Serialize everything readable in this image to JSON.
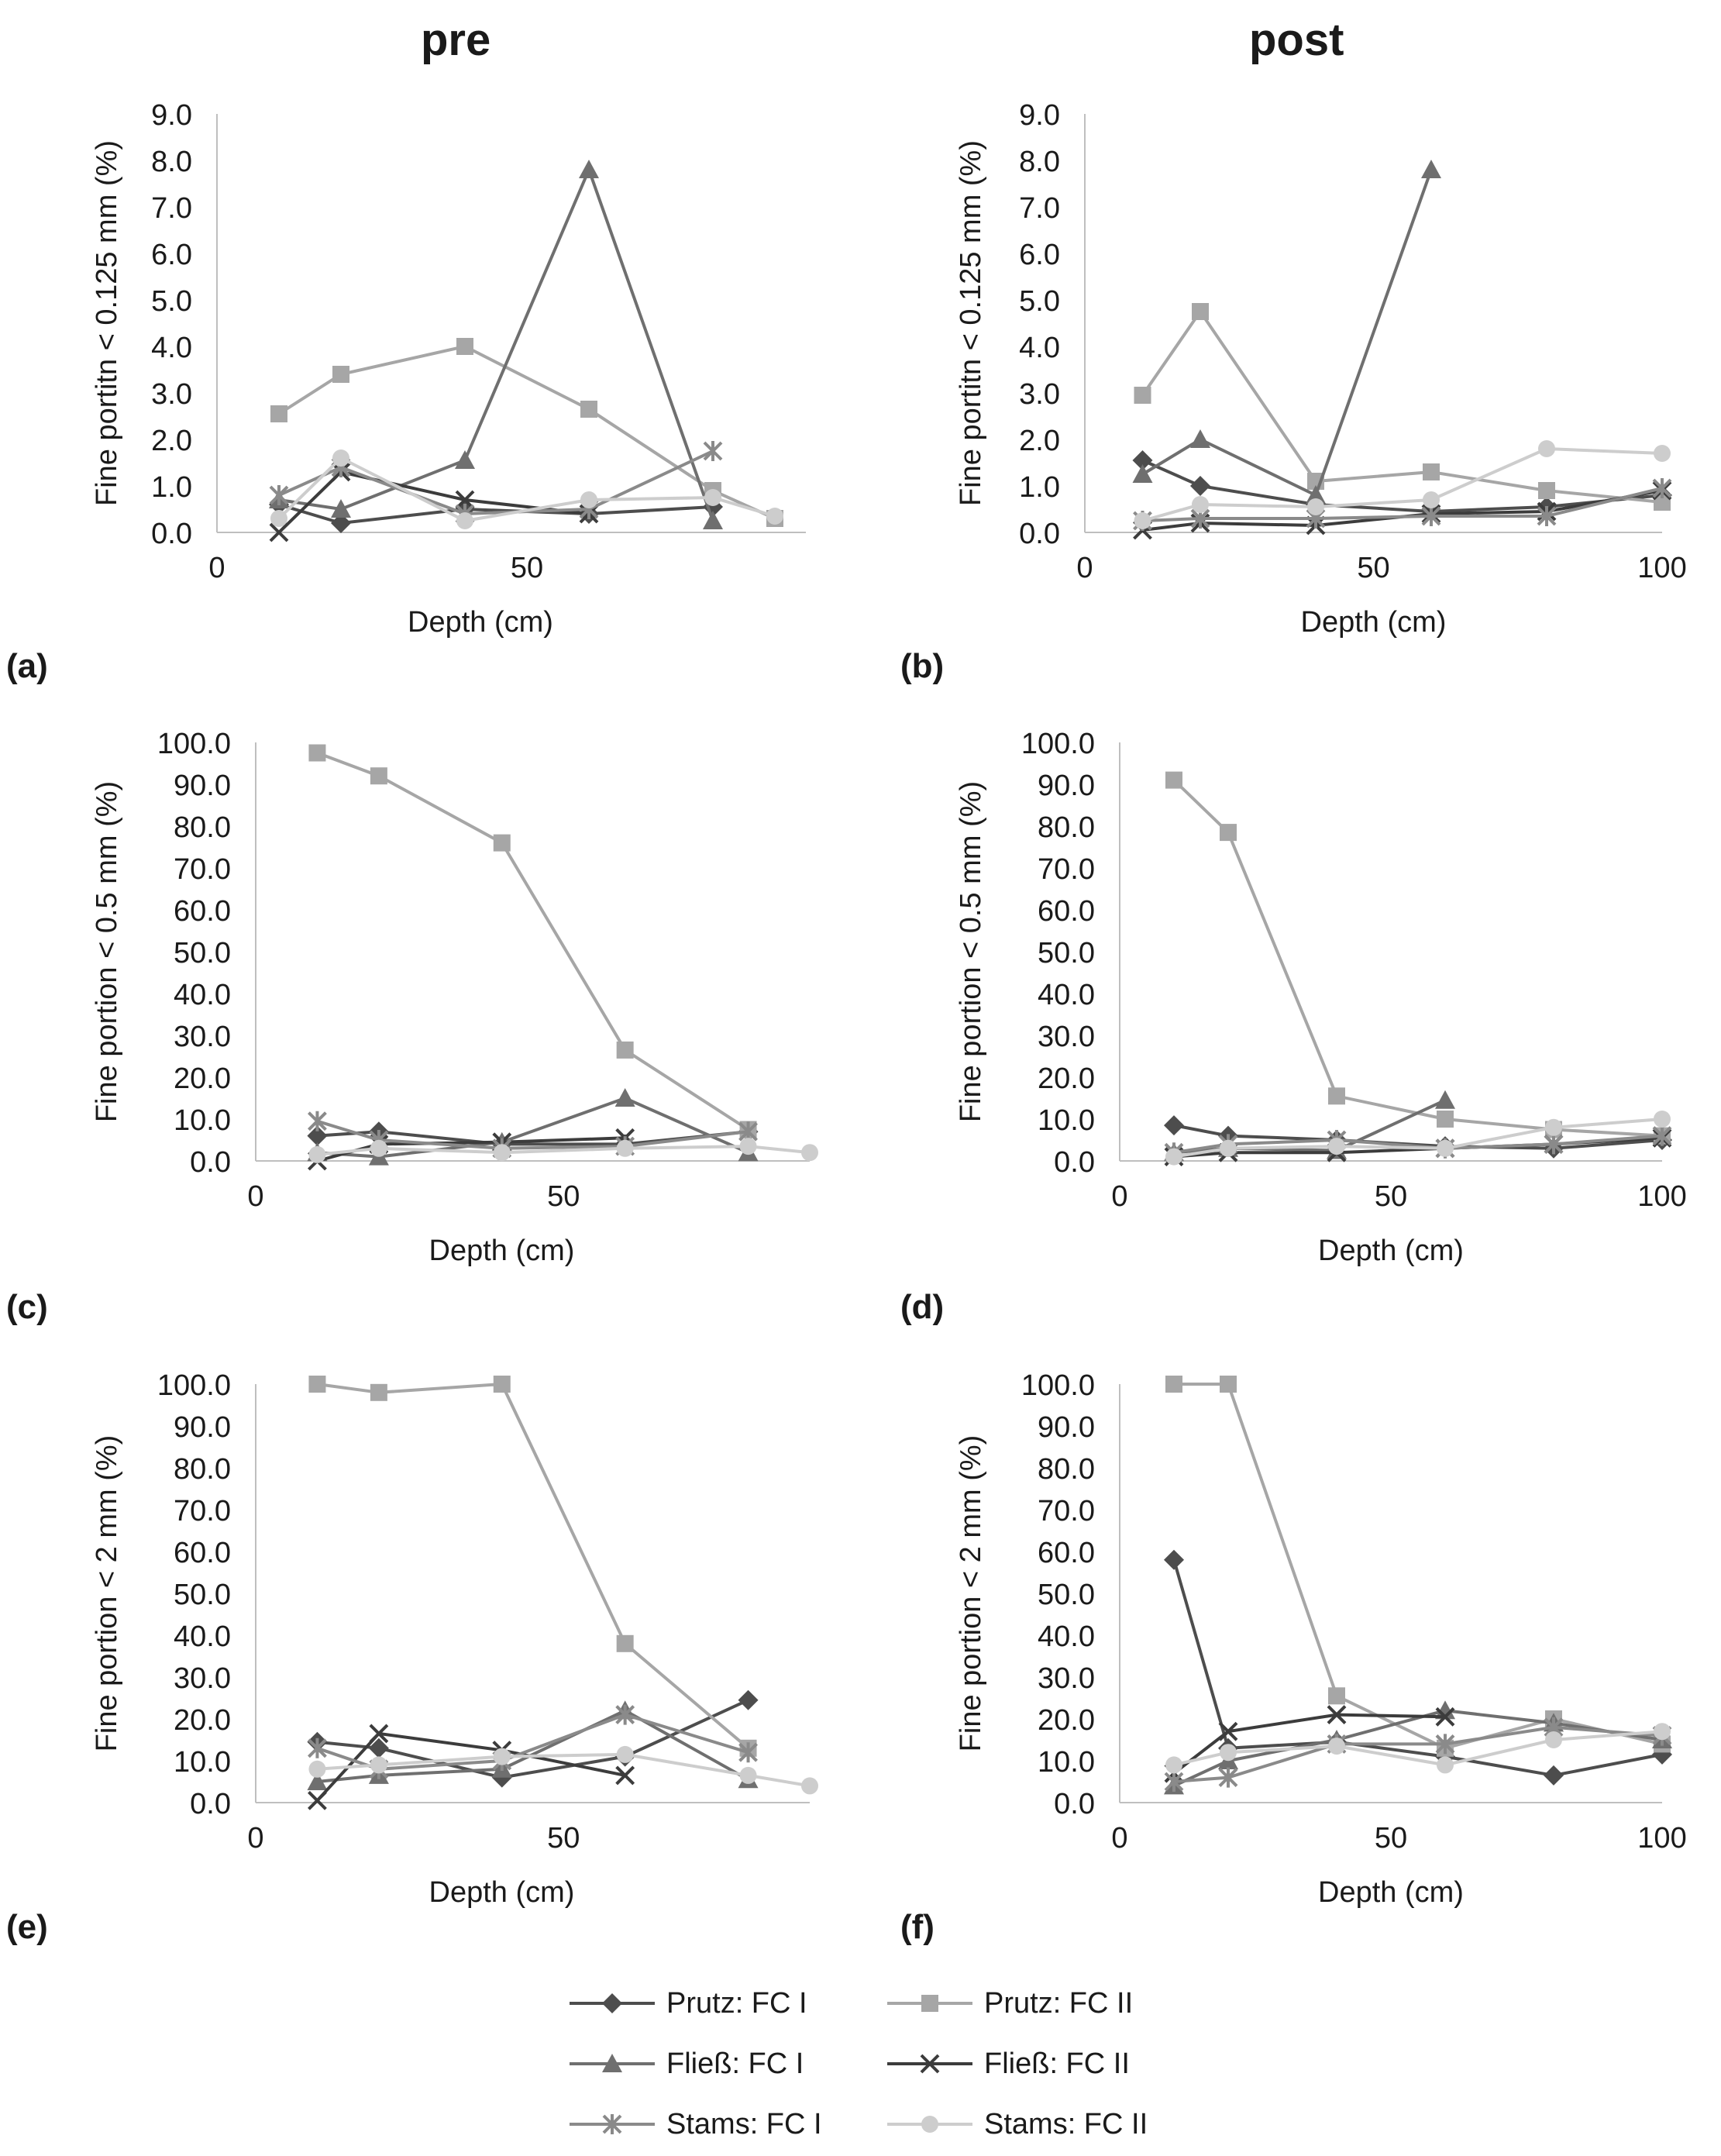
{
  "titles": {
    "pre": "pre",
    "post": "post"
  },
  "series_styles": [
    {
      "name": "Prutz: FC I",
      "color": "#4d4d4d",
      "marker": "diamond"
    },
    {
      "name": "Prutz: FC II",
      "color": "#a6a6a6",
      "marker": "square"
    },
    {
      "name": "Fließ: FC I",
      "color": "#6f6f6f",
      "marker": "triangle"
    },
    {
      "name": "Fließ: FC II",
      "color": "#3c3c3c",
      "marker": "x"
    },
    {
      "name": "Stams: FC I",
      "color": "#8a8a8a",
      "marker": "star"
    },
    {
      "name": "Stams: FC II",
      "color": "#cdcdcd",
      "marker": "circle"
    }
  ],
  "legend": {
    "prutz_fc1": "Prutz: FC I",
    "prutz_fc2": "Prutz: FC II",
    "fliess_fc1": "Fließ: FC I",
    "fliess_fc2": "Fließ: FC II",
    "stams_fc1": "Stams: FC I",
    "stams_fc2": "Stams: FC II"
  },
  "chart_data": [
    {
      "id": "a",
      "letter": "(a)",
      "type": "line",
      "xlabel": "Depth (cm)",
      "ylabel": "Fine portitn < 0.125 mm (%)",
      "xlim": [
        0,
        95
      ],
      "xticks": [
        "0",
        "50"
      ],
      "xtick_values": [
        0,
        50
      ],
      "ylim": [
        0,
        9
      ],
      "yticks": [
        "0.0",
        "1.0",
        "2.0",
        "3.0",
        "4.0",
        "5.0",
        "6.0",
        "7.0",
        "8.0",
        "9.0"
      ],
      "ytick_values": [
        0,
        1,
        2,
        3,
        4,
        5,
        6,
        7,
        8,
        9
      ],
      "series": [
        {
          "name": "Prutz: FC I",
          "x": [
            10,
            20,
            40,
            60,
            80
          ],
          "y": [
            0.6,
            0.2,
            0.5,
            0.4,
            0.55
          ]
        },
        {
          "name": "Prutz: FC II",
          "x": [
            10,
            20,
            40,
            60,
            80,
            90
          ],
          "y": [
            2.55,
            3.4,
            4.0,
            2.65,
            0.9,
            0.3
          ]
        },
        {
          "name": "Fließ: FC I",
          "x": [
            10,
            20,
            40,
            60,
            80
          ],
          "y": [
            0.7,
            0.5,
            1.55,
            7.8,
            0.25
          ]
        },
        {
          "name": "Fließ: FC II",
          "x": [
            10,
            20,
            40,
            60
          ],
          "y": [
            0.0,
            1.3,
            0.7,
            0.4
          ]
        },
        {
          "name": "Stams: FC I",
          "x": [
            10,
            20,
            40,
            60,
            80
          ],
          "y": [
            0.8,
            1.4,
            0.4,
            0.5,
            1.75
          ]
        },
        {
          "name": "Stams: FC II",
          "x": [
            10,
            20,
            40,
            60,
            80,
            90
          ],
          "y": [
            0.3,
            1.6,
            0.25,
            0.7,
            0.75,
            0.35
          ]
        }
      ]
    },
    {
      "id": "b",
      "letter": "(b)",
      "type": "line",
      "xlabel": "Depth (cm)",
      "ylabel": "Fine portitn < 0.125 mm (%)",
      "xlim": [
        0,
        100
      ],
      "xticks": [
        "0",
        "50",
        "100"
      ],
      "xtick_values": [
        0,
        50,
        100
      ],
      "ylim": [
        0,
        9
      ],
      "yticks": [
        "0.0",
        "1.0",
        "2.0",
        "3.0",
        "4.0",
        "5.0",
        "6.0",
        "7.0",
        "8.0",
        "9.0"
      ],
      "ytick_values": [
        0,
        1,
        2,
        3,
        4,
        5,
        6,
        7,
        8,
        9
      ],
      "series": [
        {
          "name": "Prutz: FC I",
          "x": [
            10,
            20,
            40,
            60,
            80,
            100
          ],
          "y": [
            1.55,
            1.0,
            0.6,
            0.45,
            0.55,
            0.8
          ]
        },
        {
          "name": "Prutz: FC II",
          "x": [
            10,
            20,
            40,
            60,
            80,
            100
          ],
          "y": [
            2.95,
            4.75,
            1.1,
            1.3,
            0.9,
            0.65
          ]
        },
        {
          "name": "Fließ: FC I",
          "x": [
            10,
            20,
            40,
            60
          ],
          "y": [
            1.25,
            2.0,
            0.8,
            7.8
          ]
        },
        {
          "name": "Fließ: FC II",
          "x": [
            10,
            20,
            40,
            60,
            80,
            100
          ],
          "y": [
            0.05,
            0.2,
            0.15,
            0.4,
            0.45,
            0.9
          ]
        },
        {
          "name": "Stams: FC I",
          "x": [
            10,
            20,
            40,
            60,
            80,
            100
          ],
          "y": [
            0.25,
            0.3,
            0.3,
            0.35,
            0.35,
            0.95
          ]
        },
        {
          "name": "Stams: FC II",
          "x": [
            10,
            20,
            40,
            60,
            80,
            100
          ],
          "y": [
            0.25,
            0.6,
            0.55,
            0.7,
            1.8,
            1.7
          ]
        }
      ]
    },
    {
      "id": "c",
      "letter": "(c)",
      "type": "line",
      "xlabel": "Depth (cm)",
      "ylabel": "Fine portion < 0.5 mm (%)",
      "xlim": [
        0,
        90
      ],
      "xticks": [
        "0",
        "50"
      ],
      "xtick_values": [
        0,
        50
      ],
      "ylim": [
        0,
        100
      ],
      "yticks": [
        "0.0",
        "10.0",
        "20.0",
        "30.0",
        "40.0",
        "50.0",
        "60.0",
        "70.0",
        "80.0",
        "90.0",
        "100.0"
      ],
      "ytick_values": [
        0,
        10,
        20,
        30,
        40,
        50,
        60,
        70,
        80,
        90,
        100
      ],
      "series": [
        {
          "name": "Prutz: FC I",
          "x": [
            10,
            20,
            40,
            60,
            80
          ],
          "y": [
            6,
            7,
            4,
            4,
            7
          ]
        },
        {
          "name": "Prutz: FC II",
          "x": [
            10,
            20,
            40,
            60,
            80
          ],
          "y": [
            97.5,
            92,
            76,
            26.5,
            7.5
          ]
        },
        {
          "name": "Fließ: FC I",
          "x": [
            10,
            20,
            40,
            60,
            80
          ],
          "y": [
            2,
            1,
            4.5,
            15,
            2
          ]
        },
        {
          "name": "Fließ: FC II",
          "x": [
            10,
            20,
            40,
            60
          ],
          "y": [
            0,
            4,
            4.5,
            5.5
          ]
        },
        {
          "name": "Stams: FC I",
          "x": [
            10,
            20,
            40,
            60,
            80
          ],
          "y": [
            9.5,
            5,
            3,
            3.5,
            7
          ]
        },
        {
          "name": "Stams: FC II",
          "x": [
            10,
            20,
            40,
            60,
            80,
            90
          ],
          "y": [
            1.5,
            3,
            2,
            3,
            3.5,
            2
          ]
        }
      ]
    },
    {
      "id": "d",
      "letter": "(d)",
      "type": "line",
      "xlabel": "Depth (cm)",
      "ylabel": "Fine portion < 0.5 mm (%)",
      "xlim": [
        0,
        100
      ],
      "xticks": [
        "0",
        "50",
        "100"
      ],
      "xtick_values": [
        0,
        50,
        100
      ],
      "ylim": [
        0,
        100
      ],
      "yticks": [
        "0.0",
        "10.0",
        "20.0",
        "30.0",
        "40.0",
        "50.0",
        "60.0",
        "70.0",
        "80.0",
        "90.0",
        "100.0"
      ],
      "ytick_values": [
        0,
        10,
        20,
        30,
        40,
        50,
        60,
        70,
        80,
        90,
        100
      ],
      "series": [
        {
          "name": "Prutz: FC I",
          "x": [
            10,
            20,
            40,
            60,
            80,
            100
          ],
          "y": [
            8.5,
            6,
            5,
            3.5,
            3,
            5
          ]
        },
        {
          "name": "Prutz: FC II",
          "x": [
            10,
            20,
            40,
            60,
            80,
            100
          ],
          "y": [
            91,
            78.5,
            15.5,
            10,
            7.5,
            6
          ]
        },
        {
          "name": "Fließ: FC I",
          "x": [
            10,
            20,
            40,
            60
          ],
          "y": [
            2,
            3,
            2.5,
            14.5
          ]
        },
        {
          "name": "Fließ: FC II",
          "x": [
            10,
            20,
            40,
            60,
            80,
            100
          ],
          "y": [
            1,
            2,
            2,
            3,
            4,
            5.5
          ]
        },
        {
          "name": "Stams: FC I",
          "x": [
            10,
            20,
            40,
            60,
            80,
            100
          ],
          "y": [
            2,
            4,
            5,
            3,
            4,
            6
          ]
        },
        {
          "name": "Stams: FC II",
          "x": [
            10,
            20,
            40,
            60,
            80,
            100
          ],
          "y": [
            1,
            3,
            3.5,
            3,
            8,
            10
          ]
        }
      ]
    },
    {
      "id": "e",
      "letter": "(e)",
      "type": "line",
      "xlabel": "Depth (cm)",
      "ylabel": "Fine portion < 2 mm (%)",
      "xlim": [
        0,
        90
      ],
      "xticks": [
        "0",
        "50"
      ],
      "xtick_values": [
        0,
        50
      ],
      "ylim": [
        0,
        100
      ],
      "yticks": [
        "0.0",
        "10.0",
        "20.0",
        "30.0",
        "40.0",
        "50.0",
        "60.0",
        "70.0",
        "80.0",
        "90.0",
        "100.0"
      ],
      "ytick_values": [
        0,
        10,
        20,
        30,
        40,
        50,
        60,
        70,
        80,
        90,
        100
      ],
      "series": [
        {
          "name": "Prutz: FC I",
          "x": [
            10,
            20,
            40,
            60,
            80
          ],
          "y": [
            14.5,
            13,
            6,
            11,
            24.5
          ]
        },
        {
          "name": "Prutz: FC II",
          "x": [
            10,
            20,
            40,
            60,
            80
          ],
          "y": [
            100,
            98,
            100,
            38,
            13
          ]
        },
        {
          "name": "Fließ: FC I",
          "x": [
            10,
            20,
            40,
            60,
            80
          ],
          "y": [
            5,
            6.5,
            8,
            22,
            5.5
          ]
        },
        {
          "name": "Fließ: FC II",
          "x": [
            10,
            20,
            40,
            60
          ],
          "y": [
            0.5,
            16.5,
            12.5,
            6.5
          ]
        },
        {
          "name": "Stams: FC I",
          "x": [
            10,
            20,
            40,
            60,
            80
          ],
          "y": [
            13,
            8,
            10,
            21,
            12
          ]
        },
        {
          "name": "Stams: FC II",
          "x": [
            10,
            20,
            40,
            60,
            80,
            90
          ],
          "y": [
            8,
            9,
            11,
            11.5,
            6.5,
            4
          ]
        }
      ]
    },
    {
      "id": "f",
      "letter": "(f)",
      "type": "line",
      "xlabel": "Depth (cm)",
      "ylabel": "Fine portion < 2 mm (%)",
      "xlim": [
        0,
        100
      ],
      "xticks": [
        "0",
        "50",
        "100"
      ],
      "xtick_values": [
        0,
        50,
        100
      ],
      "ylim": [
        0,
        100
      ],
      "yticks": [
        "0.0",
        "10.0",
        "20.0",
        "30.0",
        "40.0",
        "50.0",
        "60.0",
        "70.0",
        "80.0",
        "90.0",
        "100.0"
      ],
      "ytick_values": [
        0,
        10,
        20,
        30,
        40,
        50,
        60,
        70,
        80,
        90,
        100
      ],
      "series": [
        {
          "name": "Prutz: FC I",
          "x": [
            10,
            20,
            40,
            60,
            80,
            100
          ],
          "y": [
            58,
            13,
            14.5,
            11,
            6.5,
            11.5
          ]
        },
        {
          "name": "Prutz: FC II",
          "x": [
            10,
            20,
            40,
            60,
            80,
            100
          ],
          "y": [
            100,
            100,
            25.5,
            13,
            20,
            14
          ]
        },
        {
          "name": "Fließ: FC I",
          "x": [
            10,
            20,
            40,
            60,
            80,
            100
          ],
          "y": [
            4,
            10,
            15,
            22,
            19,
            15
          ]
        },
        {
          "name": "Fließ: FC II",
          "x": [
            10,
            20,
            40,
            60
          ],
          "y": [
            7,
            17,
            21,
            20.5
          ]
        },
        {
          "name": "Stams: FC I",
          "x": [
            10,
            20,
            40,
            60,
            80,
            100
          ],
          "y": [
            5,
            6,
            14,
            14,
            18,
            16
          ]
        },
        {
          "name": "Stams: FC II",
          "x": [
            10,
            20,
            40,
            60,
            80,
            100
          ],
          "y": [
            9,
            12,
            13.5,
            9,
            15,
            17
          ]
        }
      ]
    }
  ]
}
